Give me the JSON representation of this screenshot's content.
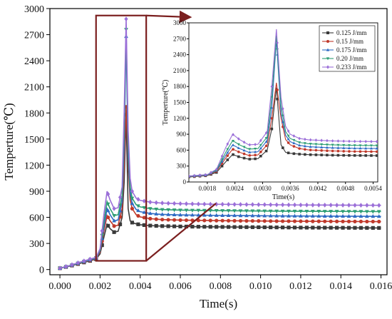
{
  "chart_data": [
    {
      "id": "main",
      "type": "line",
      "xlabel": "Time(s)",
      "ylabel": "Temperture(℃)",
      "xlim": [
        -0.0005,
        0.0163
      ],
      "ylim": [
        -60,
        3000
      ],
      "xticks": [
        "0.000",
        "0.002",
        "0.004",
        "0.006",
        "0.008",
        "0.010",
        "0.012",
        "0.014",
        "0.016"
      ],
      "yticks": [
        "0",
        "300",
        "600",
        "900",
        "1200",
        "1500",
        "1800",
        "2100",
        "2400",
        "2700",
        "3000"
      ],
      "series": [
        {
          "name": "0.125 J/mm",
          "color": "#3a3a3a",
          "marker": "square",
          "x": [
            0,
            0.0005,
            0.001,
            0.0015,
            0.0018,
            0.002,
            0.0022,
            0.00235,
            0.0025,
            0.0027,
            0.0029,
            0.0031,
            0.0032,
            0.0033,
            0.0034,
            0.0035,
            0.0036,
            0.0038,
            0.004,
            0.0045,
            0.005,
            0.006,
            0.007,
            0.008,
            0.009,
            0.01,
            0.011,
            0.012,
            0.013,
            0.014,
            0.015,
            0.016
          ],
          "y": [
            15,
            40,
            70,
            100,
            120,
            180,
            380,
            520,
            470,
            430,
            440,
            600,
            1000,
            1780,
            700,
            560,
            540,
            525,
            515,
            505,
            500,
            495,
            492,
            490,
            488,
            486,
            484,
            482,
            481,
            480,
            479,
            478
          ]
        },
        {
          "name": "0.15 J/mm",
          "color": "#c0392b",
          "marker": "circle",
          "x": [
            0,
            0.0005,
            0.001,
            0.0015,
            0.0018,
            0.002,
            0.0022,
            0.00235,
            0.0025,
            0.0027,
            0.0029,
            0.0031,
            0.0032,
            0.0033,
            0.0034,
            0.0035,
            0.0036,
            0.0038,
            0.004,
            0.0045,
            0.005,
            0.006,
            0.007,
            0.008,
            0.009,
            0.01,
            0.011,
            0.012,
            0.013,
            0.014,
            0.015,
            0.016
          ],
          "y": [
            15,
            42,
            75,
            105,
            125,
            200,
            450,
            620,
            560,
            500,
            510,
            700,
            1200,
            1870,
            1200,
            800,
            700,
            630,
            605,
            585,
            575,
            568,
            565,
            562,
            560,
            558,
            556,
            555,
            554,
            553,
            552,
            551
          ]
        },
        {
          "name": "0.175 J/mm",
          "color": "#2e6bc4",
          "marker": "triangle",
          "x": [
            0,
            0.0005,
            0.001,
            0.0015,
            0.0018,
            0.002,
            0.0022,
            0.00235,
            0.0025,
            0.0027,
            0.0029,
            0.0031,
            0.0032,
            0.0033,
            0.0034,
            0.0035,
            0.0036,
            0.0038,
            0.004,
            0.0045,
            0.005,
            0.006,
            0.007,
            0.008,
            0.009,
            0.01,
            0.011,
            0.012,
            0.013,
            0.014,
            0.015,
            0.016
          ],
          "y": [
            15,
            44,
            78,
            110,
            130,
            215,
            500,
            700,
            630,
            560,
            570,
            780,
            1400,
            2680,
            1300,
            880,
            760,
            690,
            665,
            645,
            635,
            628,
            625,
            622,
            620,
            618,
            616,
            615,
            614,
            613,
            612,
            611
          ]
        },
        {
          "name": "0.20 J/mm",
          "color": "#2e9e74",
          "marker": "triangle-down",
          "x": [
            0,
            0.0005,
            0.001,
            0.0015,
            0.0018,
            0.002,
            0.0022,
            0.00235,
            0.0025,
            0.0027,
            0.0029,
            0.0031,
            0.0032,
            0.0033,
            0.0034,
            0.0035,
            0.0036,
            0.0038,
            0.004,
            0.0045,
            0.005,
            0.006,
            0.007,
            0.008,
            0.009,
            0.01,
            0.011,
            0.012,
            0.013,
            0.014,
            0.015,
            0.016
          ],
          "y": [
            16,
            46,
            80,
            115,
            135,
            225,
            560,
            780,
            700,
            620,
            630,
            850,
            1600,
            2760,
            1450,
            950,
            820,
            745,
            720,
            700,
            690,
            683,
            680,
            677,
            675,
            673,
            671,
            670,
            669,
            668,
            667,
            666
          ]
        },
        {
          "name": "0.233 J/mm",
          "color": "#9b6fd8",
          "marker": "diamond",
          "x": [
            0,
            0.0005,
            0.001,
            0.0015,
            0.0018,
            0.002,
            0.0022,
            0.00235,
            0.0025,
            0.0027,
            0.0029,
            0.0031,
            0.0032,
            0.0033,
            0.0034,
            0.0035,
            0.0036,
            0.0038,
            0.004,
            0.0045,
            0.005,
            0.006,
            0.007,
            0.008,
            0.009,
            0.01,
            0.011,
            0.012,
            0.013,
            0.014,
            0.015,
            0.016
          ],
          "y": [
            17,
            48,
            85,
            120,
            140,
            240,
            650,
            900,
            800,
            700,
            710,
            950,
            1800,
            2880,
            1600,
            1050,
            900,
            820,
            795,
            775,
            765,
            757,
            753,
            750,
            748,
            746,
            744,
            742,
            741,
            740,
            739,
            738
          ]
        }
      ]
    },
    {
      "id": "inset",
      "type": "line",
      "xlabel": "Time(s)",
      "ylabel": "Temperture(℃)",
      "xlim": [
        0.0014,
        0.0055
      ],
      "ylim": [
        0,
        3000
      ],
      "xticks": [
        "0.0018",
        "0.0024",
        "0.0030",
        "0.0036",
        "0.0042",
        "0.0048",
        "0.0054"
      ],
      "yticks": [
        "0",
        "300",
        "600",
        "900",
        "1200",
        "1500",
        "1800",
        "2100",
        "2400",
        "2700",
        "3000"
      ],
      "legend": "top-right"
    }
  ]
}
